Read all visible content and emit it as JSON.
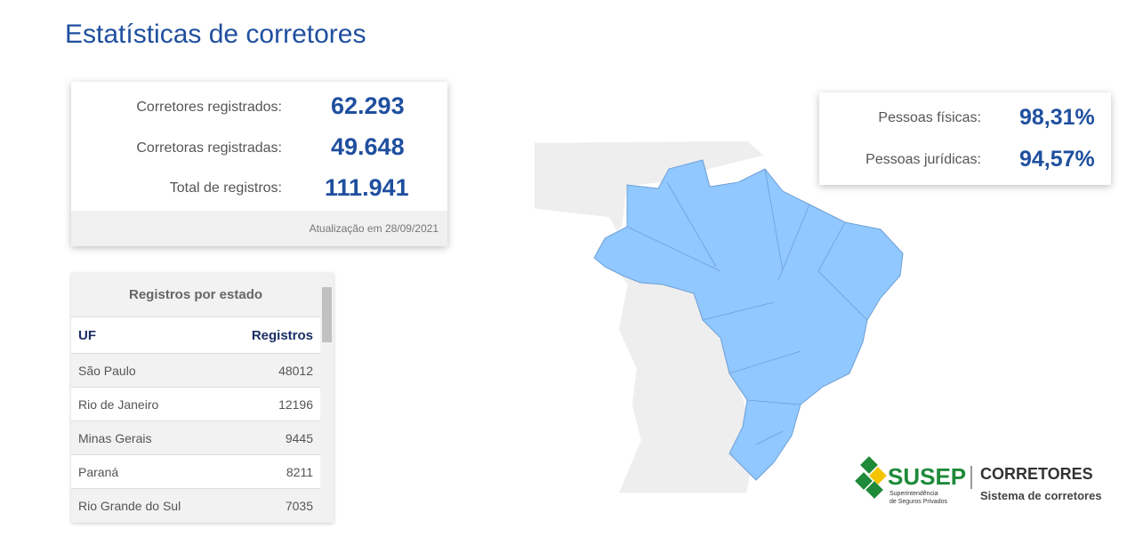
{
  "header": {
    "title": "Estatísticas de corretores"
  },
  "summary": {
    "rows": [
      {
        "label": "Corretores registrados:",
        "value": "62.293"
      },
      {
        "label": "Corretoras registradas:",
        "value": "49.648"
      },
      {
        "label": "Total de registros:",
        "value": "111.941"
      }
    ],
    "update": "Atualização em 28/09/2021"
  },
  "percentages": {
    "rows": [
      {
        "label": "Pessoas físicas:",
        "value": "98,31%"
      },
      {
        "label": "Pessoas jurídicas:",
        "value": "94,57%"
      }
    ]
  },
  "table": {
    "title": "Registros por estado",
    "columns": [
      "UF",
      "Registros"
    ],
    "rows": [
      [
        "São Paulo",
        "48012"
      ],
      [
        "Rio de Janeiro",
        "12196"
      ],
      [
        "Minas Gerais",
        "9445"
      ],
      [
        "Paraná",
        "8211"
      ],
      [
        "Rio Grande do Sul",
        "7035"
      ]
    ]
  },
  "logo": {
    "name": "SUSEP",
    "subtitle": [
      "Superintendência",
      "de Seguros Privados"
    ],
    "product": "CORRETORES",
    "tagline": "Sistema de corretores"
  }
}
